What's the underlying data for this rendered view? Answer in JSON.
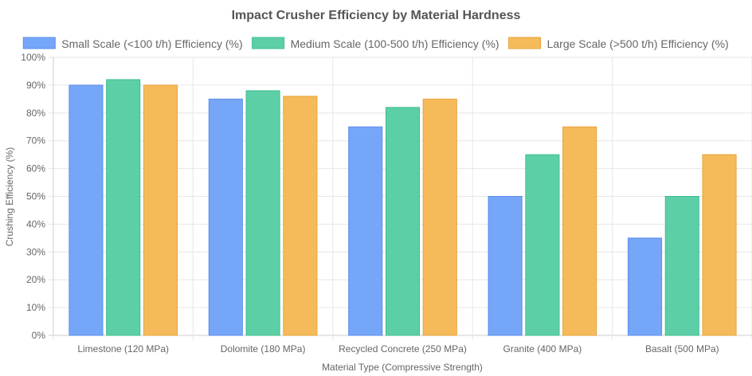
{
  "chart_data": {
    "type": "bar",
    "title": "Impact Crusher Efficiency by Material Hardness",
    "xlabel": "Material Type (Compressive Strength)",
    "ylabel": "Crushing Efficiency (%)",
    "categories": [
      "Limestone (120 MPa)",
      "Dolomite (180 MPa)",
      "Recycled Concrete (250 MPa)",
      "Granite (400 MPa)",
      "Basalt (500 MPa)"
    ],
    "series": [
      {
        "name": "Small Scale (<100 t/h) Efficiency (%)",
        "values": [
          90,
          85,
          75,
          50,
          35
        ],
        "fill": "#76a6f7",
        "stroke": "#5b8def"
      },
      {
        "name": "Medium Scale (100-500 t/h) Efficiency (%)",
        "values": [
          92,
          88,
          82,
          65,
          50
        ],
        "fill": "#5dcfa6",
        "stroke": "#3fbf8f"
      },
      {
        "name": "Large Scale (>500 t/h) Efficiency (%)",
        "values": [
          90,
          86,
          85,
          75,
          65
        ],
        "fill": "#f5bb5a",
        "stroke": "#e8a23a"
      }
    ],
    "ylim": [
      0,
      100
    ],
    "ytick_step": 10,
    "ytick_suffix": "%",
    "grid": true,
    "legend_position": "top"
  }
}
